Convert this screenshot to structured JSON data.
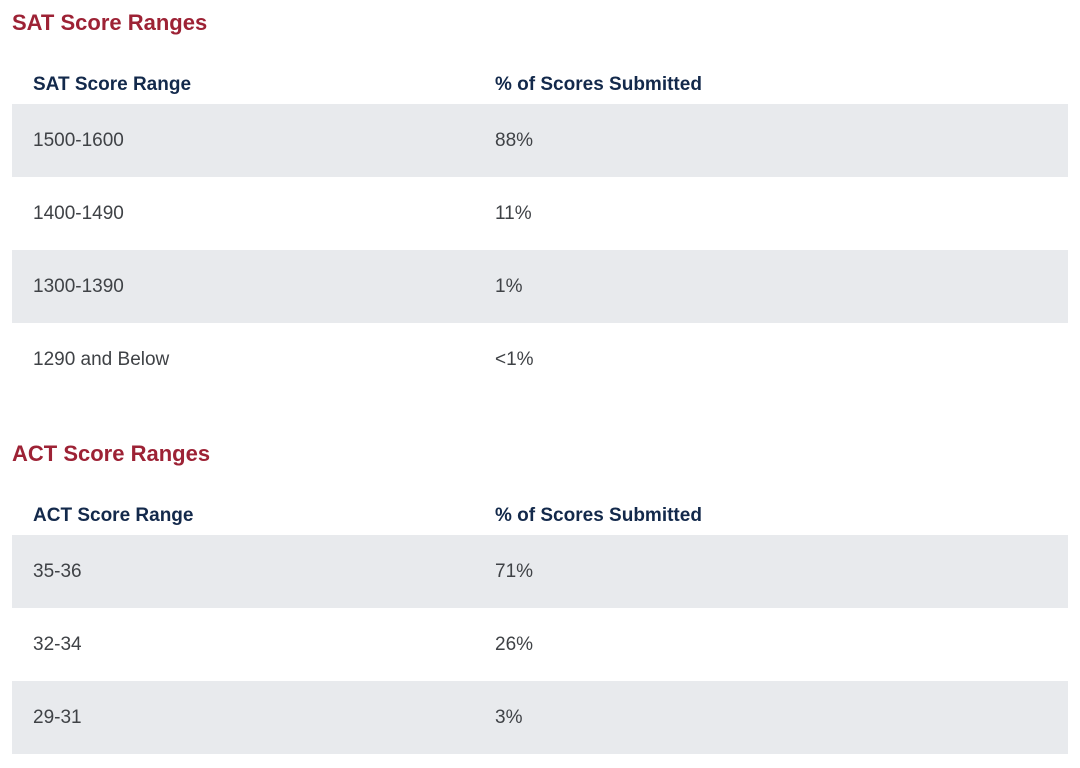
{
  "colors": {
    "section_heading": "#9d2235",
    "table_header_text": "#13294b",
    "row_text": "#3f4246",
    "stripe_row_bg": "#e8eaed",
    "page_bg": "#ffffff"
  },
  "sections": [
    {
      "heading": "SAT Score Ranges",
      "table": {
        "columns": [
          "SAT Score Range",
          "% of Scores Submitted"
        ],
        "rows": [
          {
            "range": "1500-1600",
            "percent": "88%"
          },
          {
            "range": "1400-1490",
            "percent": "11%"
          },
          {
            "range": "1300-1390",
            "percent": "1%"
          },
          {
            "range": "1290 and Below",
            "percent": "<1%"
          }
        ]
      }
    },
    {
      "heading": "ACT Score Ranges",
      "table": {
        "columns": [
          "ACT Score Range",
          "% of Scores Submitted"
        ],
        "rows": [
          {
            "range": "35-36",
            "percent": "71%"
          },
          {
            "range": "32-34",
            "percent": "26%"
          },
          {
            "range": "29-31",
            "percent": "3%"
          }
        ]
      }
    }
  ]
}
